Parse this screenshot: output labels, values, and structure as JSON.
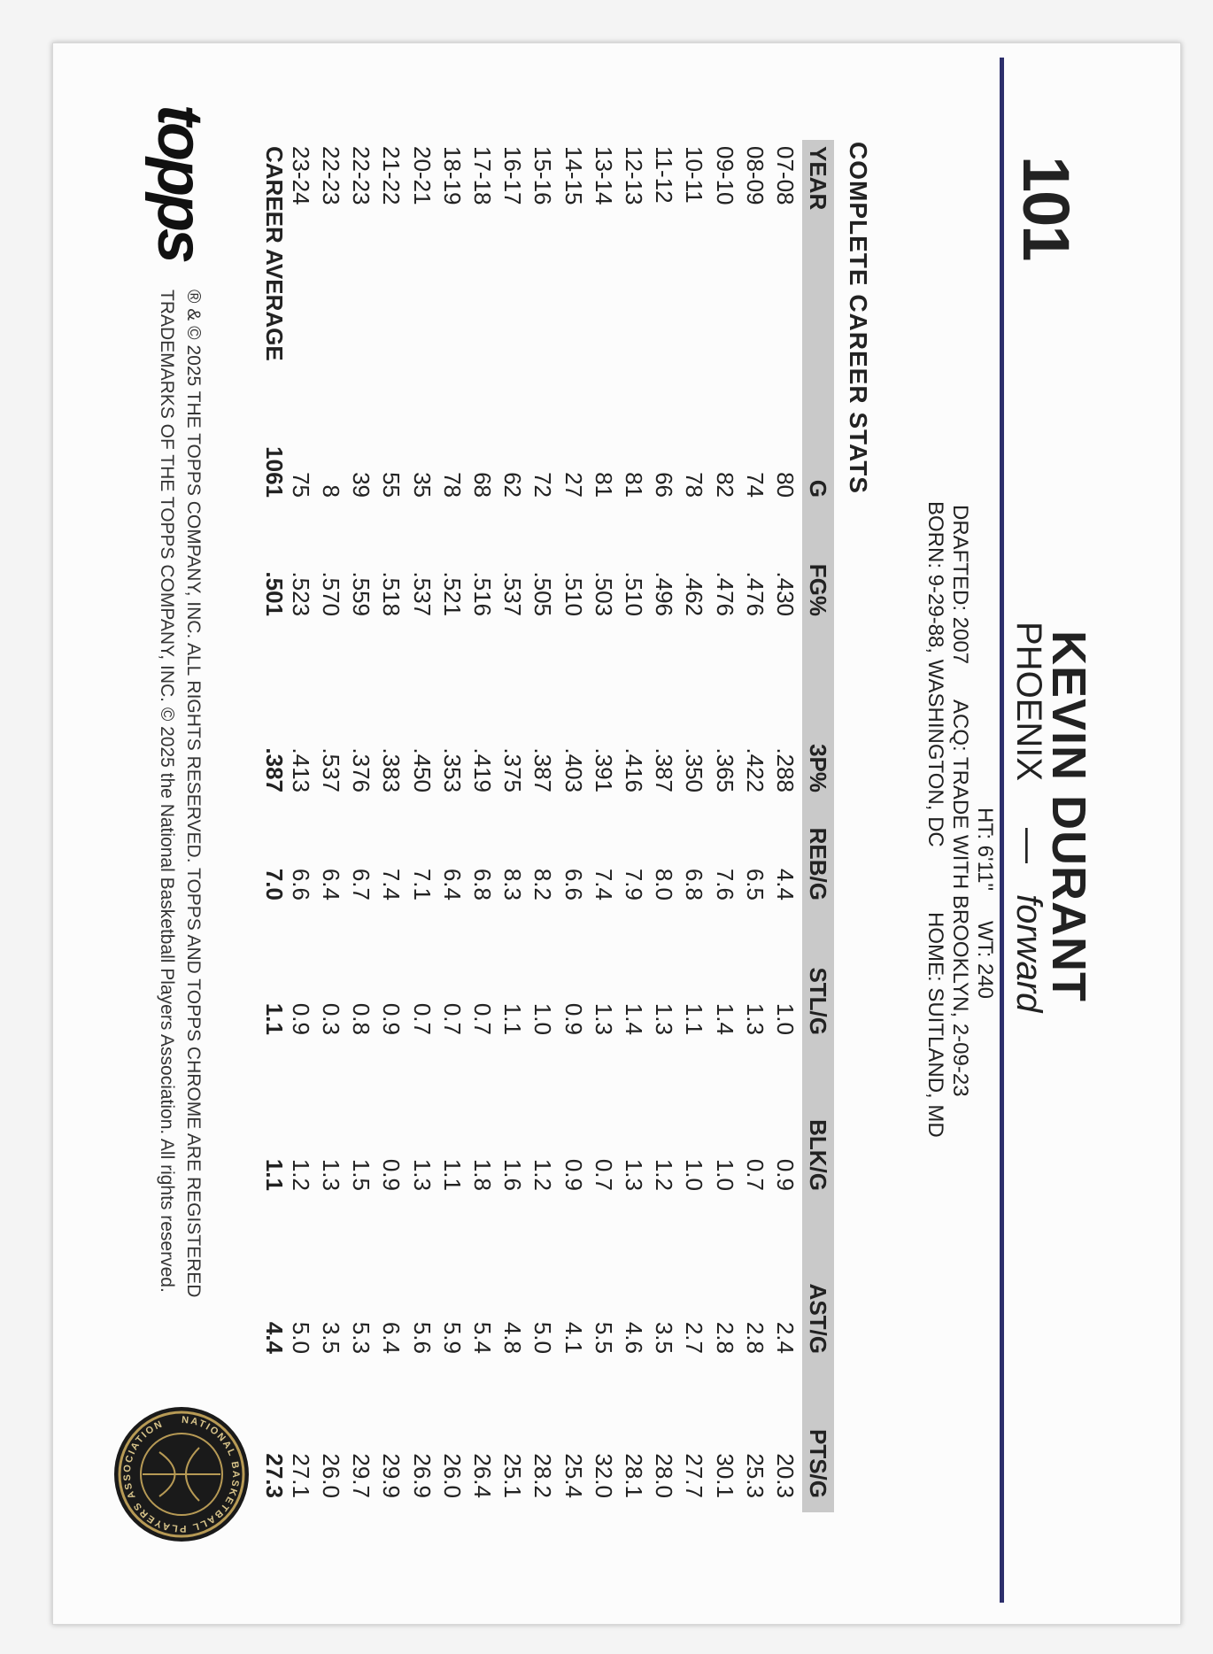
{
  "card_number": "101",
  "player_name": "KEVIN DURANT",
  "team": "PHOENIX",
  "position": "forward",
  "bio": {
    "height": "HT: 6'11\"",
    "weight": "WT: 240",
    "drafted": "DRAFTED: 2007",
    "acquired": "ACQ: TRADE WITH BROOKLYN, 2-09-23",
    "born": "BORN: 9-29-88, WASHINGTON, DC",
    "home": "HOME: SUITLAND, MD"
  },
  "stats_title": "COMPLETE CAREER STATS",
  "table": {
    "header": [
      "YEAR",
      "G",
      "FG%",
      "3P%",
      "REB/G",
      "STL/G",
      "BLK/G",
      "AST/G",
      "PTS/G"
    ],
    "rows": [
      [
        "07-08",
        "80",
        ".430",
        ".288",
        "4.4",
        "1.0",
        "0.9",
        "2.4",
        "20.3"
      ],
      [
        "08-09",
        "74",
        ".476",
        ".422",
        "6.5",
        "1.3",
        "0.7",
        "2.8",
        "25.3"
      ],
      [
        "09-10",
        "82",
        ".476",
        ".365",
        "7.6",
        "1.4",
        "1.0",
        "2.8",
        "30.1"
      ],
      [
        "10-11",
        "78",
        ".462",
        ".350",
        "6.8",
        "1.1",
        "1.0",
        "2.7",
        "27.7"
      ],
      [
        "11-12",
        "66",
        ".496",
        ".387",
        "8.0",
        "1.3",
        "1.2",
        "3.5",
        "28.0"
      ],
      [
        "12-13",
        "81",
        ".510",
        ".416",
        "7.9",
        "1.4",
        "1.3",
        "4.6",
        "28.1"
      ],
      [
        "13-14",
        "81",
        ".503",
        ".391",
        "7.4",
        "1.3",
        "0.7",
        "5.5",
        "32.0"
      ],
      [
        "14-15",
        "27",
        ".510",
        ".403",
        "6.6",
        "0.9",
        "0.9",
        "4.1",
        "25.4"
      ],
      [
        "15-16",
        "72",
        ".505",
        ".387",
        "8.2",
        "1.0",
        "1.2",
        "5.0",
        "28.2"
      ],
      [
        "16-17",
        "62",
        ".537",
        ".375",
        "8.3",
        "1.1",
        "1.6",
        "4.8",
        "25.1"
      ],
      [
        "17-18",
        "68",
        ".516",
        ".419",
        "6.8",
        "0.7",
        "1.8",
        "5.4",
        "26.4"
      ],
      [
        "18-19",
        "78",
        ".521",
        ".353",
        "6.4",
        "0.7",
        "1.1",
        "5.9",
        "26.0"
      ],
      [
        "20-21",
        "35",
        ".537",
        ".450",
        "7.1",
        "0.7",
        "1.3",
        "5.6",
        "26.9"
      ],
      [
        "21-22",
        "55",
        ".518",
        ".383",
        "7.4",
        "0.9",
        "0.9",
        "6.4",
        "29.9"
      ],
      [
        "22-23",
        "39",
        ".559",
        ".376",
        "6.7",
        "0.8",
        "1.5",
        "5.3",
        "29.7"
      ],
      [
        "22-23",
        "8",
        ".570",
        ".537",
        "6.4",
        "0.3",
        "1.3",
        "3.5",
        "26.0"
      ],
      [
        "23-24",
        "75",
        ".523",
        ".413",
        "6.6",
        "0.9",
        "1.2",
        "5.0",
        "27.1"
      ]
    ],
    "career": [
      "CAREER AVERAGE",
      "1061",
      ".501",
      ".387",
      "7.0",
      "1.1",
      "1.1",
      "4.4",
      "27.3"
    ]
  },
  "logo": "topps",
  "copyright": [
    "® & © 2025 THE TOPPS COMPANY, INC. ALL RIGHTS RESERVED. TOPPS AND TOPPS CHROME ARE REGISTERED",
    "TRADEMARKS OF THE TOPPS COMPANY, INC. © 2025 the National Basketball Players Association. All rights reserved."
  ],
  "seal_text": "NATIONAL BASKETBALL PLAYERS ASSOCIATION"
}
